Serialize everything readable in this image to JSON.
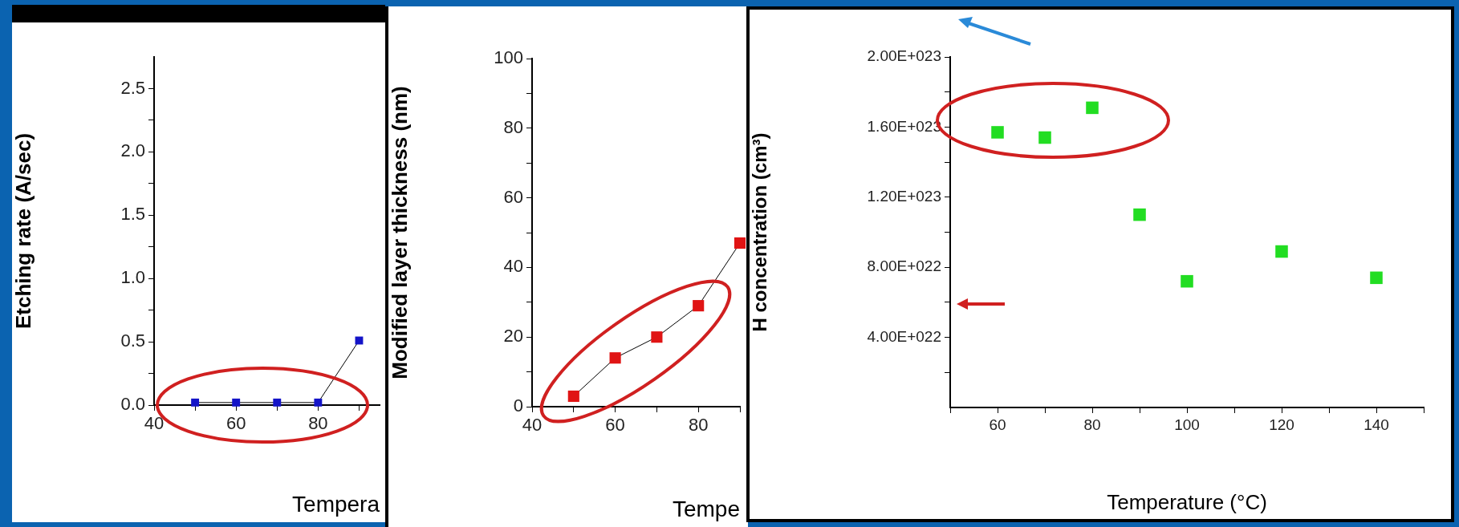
{
  "chart_data": [
    {
      "type": "line",
      "xlabel": "Tempera",
      "ylabel": "Etching rate (A/sec)",
      "x": [
        50,
        60,
        70,
        80,
        90
      ],
      "series": [
        {
          "color": "#1414c8",
          "values": [
            0.02,
            0.02,
            0.02,
            0.02,
            0.51
          ]
        }
      ],
      "xlim": [
        40,
        95
      ],
      "xticks": [
        40,
        {
          "value": 50,
          "label": null
        },
        60,
        {
          "value": 70,
          "label": null
        },
        80,
        {
          "value": 90,
          "label": null
        }
      ],
      "ylim": [
        0,
        2.75
      ],
      "yticks": [
        {
          "value": 0,
          "label": "0.0"
        },
        {
          "value": 0.25,
          "label": null
        },
        0.5,
        {
          "value": 0.75,
          "label": null
        },
        {
          "value": 1,
          "label": "1.0"
        },
        {
          "value": 1.25,
          "label": null
        },
        1.5,
        {
          "value": 1.75,
          "label": null
        },
        {
          "value": 2,
          "label": "2.0"
        },
        {
          "value": 2.25,
          "label": null
        },
        2.5
      ],
      "marker": "square",
      "line_style": "solid"
    },
    {
      "type": "line",
      "xlabel": "Tempe",
      "ylabel": "Modified layer thickness (nm)",
      "x": [
        50,
        60,
        70,
        80,
        90
      ],
      "series": [
        {
          "color": "#e01414",
          "values": [
            3,
            14,
            20,
            29,
            47
          ]
        }
      ],
      "xlim": [
        40,
        90
      ],
      "xticks": [
        40,
        {
          "value": 50,
          "label": null
        },
        60,
        {
          "value": 70,
          "label": null
        },
        80,
        {
          "value": 90,
          "label": null
        }
      ],
      "ylim": [
        0,
        100
      ],
      "yticks": [
        0,
        {
          "value": 10,
          "label": null
        },
        20,
        {
          "value": 30,
          "label": null
        },
        40,
        {
          "value": 50,
          "label": null
        },
        60,
        {
          "value": 70,
          "label": null
        },
        80,
        {
          "value": 90,
          "label": null
        },
        100
      ],
      "marker": "square",
      "line_style": "solid"
    },
    {
      "type": "scatter",
      "xlabel": "Temperature (°C)",
      "ylabel": "H concentration (cm³)",
      "x": [
        60,
        70,
        80,
        90,
        100,
        120,
        140
      ],
      "series": [
        {
          "color": "#22dd22",
          "values": [
            1.57e+23,
            1.54e+23,
            1.71e+23,
            1.1e+23,
            7.2e+22,
            8.9e+22,
            7.4e+22
          ]
        }
      ],
      "xlim": [
        50,
        150
      ],
      "xticks": [
        {
          "value": 50,
          "label": null
        },
        60,
        {
          "value": 70,
          "label": null
        },
        80,
        {
          "value": 90,
          "label": null
        },
        100,
        {
          "value": 110,
          "label": null
        },
        120,
        {
          "value": 130,
          "label": null
        },
        140,
        {
          "value": 150,
          "label": null
        }
      ],
      "ylim": [
        0,
        2e+23
      ],
      "yticks": [
        {
          "value": 2e+22,
          "label": null
        },
        {
          "value": 4e+22,
          "label": "4.00E+022"
        },
        {
          "value": 6e+22,
          "label": null
        },
        {
          "value": 8e+22,
          "label": "8.00E+022"
        },
        {
          "value": 1e+23,
          "label": null
        },
        {
          "value": 1.2e+23,
          "label": "1.20E+023"
        },
        {
          "value": 1.4e+23,
          "label": null
        },
        {
          "value": 1.6e+23,
          "label": "1.60E+023"
        },
        {
          "value": 1.8e+23,
          "label": null
        },
        {
          "value": 2e+23,
          "label": "2.00E+023"
        }
      ],
      "marker": "square"
    }
  ]
}
